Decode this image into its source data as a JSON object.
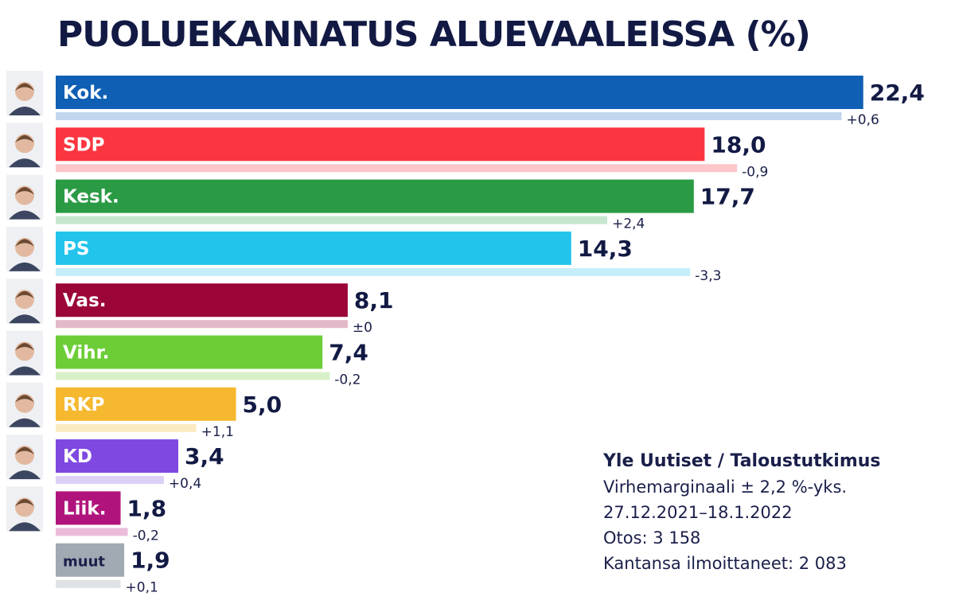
{
  "title": "PUOLUEKANNATUS ALUEVAALEISSA (%)",
  "chart_data": {
    "type": "bar",
    "orientation": "horizontal",
    "title": "PUOLUEKANNATUS ALUEVAALEISSA (%)",
    "categories": [
      "Kok.",
      "SDP",
      "Kesk.",
      "PS",
      "Vas.",
      "Vihr.",
      "RKP",
      "KD",
      "Liik.",
      "muut"
    ],
    "values": [
      22.4,
      18.0,
      17.7,
      14.3,
      8.1,
      7.4,
      5.0,
      3.4,
      1.8,
      1.9
    ],
    "value_labels": [
      "22,4",
      "18,0",
      "17,7",
      "14,3",
      "8,1",
      "7,4",
      "5,0",
      "3,4",
      "1,8",
      "1,9"
    ],
    "changes": [
      0.6,
      -0.9,
      2.4,
      -3.3,
      0,
      -0.2,
      1.1,
      0.4,
      -0.2,
      0.1
    ],
    "change_labels": [
      "+0,6",
      "-0,9",
      "+2,4",
      "-3,3",
      "±0",
      "-0,2",
      "+1,1",
      "+0,4",
      "-0,2",
      "+0,1"
    ],
    "colors": [
      "#0f5fb5",
      "#fb3640",
      "#2a9b44",
      "#22c4ec",
      "#9b0538",
      "#6ccd36",
      "#f5b82e",
      "#7f48e1",
      "#b0147c",
      "#a1a9b3"
    ],
    "previous_colors": [
      "#c2d7ed",
      "#fdc6c9",
      "#c6e6cd",
      "#c5eefa",
      "#e3b8c9",
      "#d8f0c8",
      "#fcebc2",
      "#ddd0f7",
      "#ebbcd9",
      "#dfe2e6"
    ],
    "has_portrait": [
      true,
      true,
      true,
      true,
      true,
      true,
      true,
      true,
      true,
      false
    ],
    "grid": false
  },
  "source": {
    "heading": "Yle Uutiset / Taloustutkimus",
    "lines": [
      "Virhemarginaali ± 2,2 %-yks.",
      "27.12.2021–18.1.2022",
      "Otos: 3 158",
      "Kantansa ilmoittaneet: 2 083"
    ]
  }
}
